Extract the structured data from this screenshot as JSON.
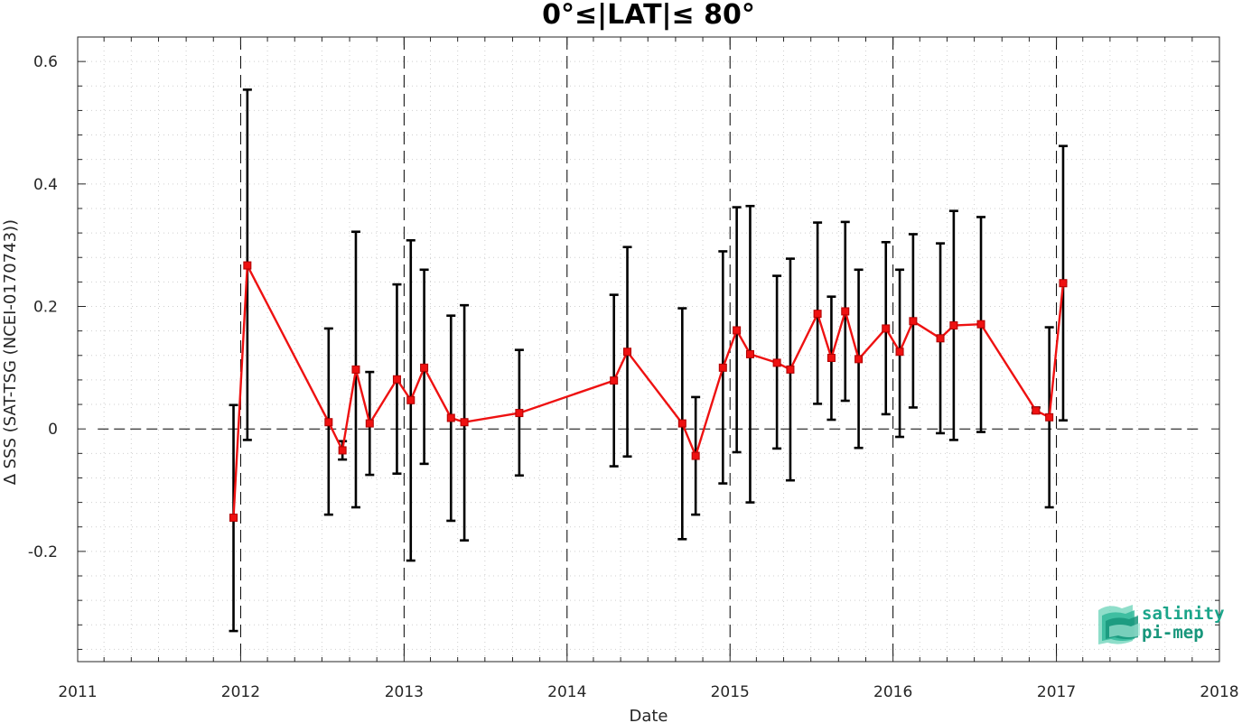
{
  "chart_data": {
    "type": "line",
    "title": "0°≤|LAT|≤ 80°",
    "xlabel": "Date",
    "ylabel": "∆ SSS (SAT-TSG (NCEI-0170743))",
    "xlim": [
      "2011-01-01",
      "2018-01-01"
    ],
    "ylim": [
      -0.38,
      0.64
    ],
    "x_ticks": [
      "2011",
      "2012",
      "2013",
      "2014",
      "2015",
      "2016",
      "2017",
      "2018"
    ],
    "y_ticks": [
      -0.2,
      0,
      0.2,
      0.4,
      0.6
    ],
    "y_tick_labels": [
      "-0.2",
      "0",
      "0.2",
      "0.4",
      "0.6"
    ],
    "grid": "minor dotted",
    "reference_line": {
      "y": 0,
      "style": "dashed"
    },
    "year_lines": [
      "2012-01-01",
      "2013-01-01",
      "2014-01-01",
      "2015-01-01",
      "2016-01-01",
      "2017-01-01"
    ],
    "series": [
      {
        "color": "#ee1111",
        "errorbar_color": "#000000",
        "x": [
          "2011-12-16",
          "2012-01-16",
          "2012-07-16",
          "2012-08-16",
          "2012-09-15",
          "2012-10-16",
          "2012-12-16",
          "2013-01-16",
          "2013-02-15",
          "2013-04-16",
          "2013-05-16",
          "2013-09-16",
          "2014-04-16",
          "2014-05-16",
          "2014-09-16",
          "2014-10-16",
          "2014-12-16",
          "2015-01-16",
          "2015-02-15",
          "2015-04-16",
          "2015-05-16",
          "2015-07-16",
          "2015-08-16",
          "2015-09-16",
          "2015-10-16",
          "2015-12-16",
          "2016-01-16",
          "2016-02-15",
          "2016-04-16",
          "2016-05-16",
          "2016-07-16",
          "2016-11-16",
          "2016-12-16",
          "2017-01-16"
        ],
        "y": [
          -0.145,
          0.267,
          0.011,
          -0.035,
          0.097,
          0.009,
          0.081,
          0.047,
          0.1,
          0.018,
          0.011,
          0.026,
          0.079,
          0.126,
          0.009,
          -0.044,
          0.1,
          0.161,
          0.122,
          0.108,
          0.097,
          0.188,
          0.116,
          0.192,
          0.114,
          0.164,
          0.126,
          0.176,
          0.148,
          0.169,
          0.171,
          0.03,
          0.019,
          0.238
        ],
        "err_low": [
          -0.33,
          -0.018,
          -0.14,
          -0.05,
          -0.128,
          -0.075,
          -0.073,
          -0.215,
          -0.057,
          -0.15,
          -0.182,
          -0.076,
          -0.061,
          -0.045,
          -0.18,
          -0.14,
          -0.089,
          -0.038,
          -0.12,
          -0.032,
          -0.084,
          0.041,
          0.015,
          0.046,
          -0.031,
          0.024,
          -0.013,
          0.035,
          -0.007,
          -0.018,
          -0.005,
          0.026,
          -0.128,
          0.014
        ],
        "err_high": [
          0.039,
          0.554,
          0.164,
          -0.02,
          0.322,
          0.093,
          0.236,
          0.308,
          0.26,
          0.185,
          0.202,
          0.129,
          0.219,
          0.297,
          0.197,
          0.052,
          0.29,
          0.362,
          0.364,
          0.25,
          0.278,
          0.337,
          0.216,
          0.338,
          0.26,
          0.305,
          0.26,
          0.318,
          0.303,
          0.356,
          0.346,
          0.035,
          0.166,
          0.462
        ]
      }
    ]
  },
  "logo": {
    "line1": "salinity",
    "line2": "pi-mep",
    "color": "#1ba58a"
  }
}
